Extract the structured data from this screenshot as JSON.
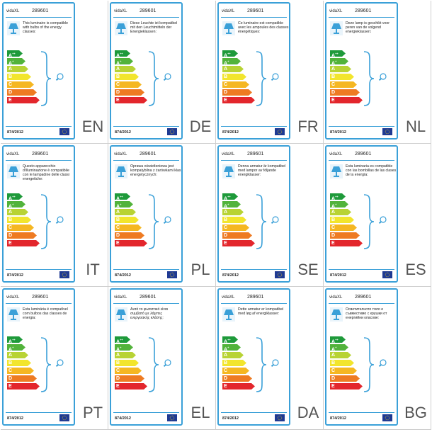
{
  "brand": "vidaXL",
  "model": "289601",
  "regulation": "874/2012",
  "energy_classes": [
    "A++",
    "A+",
    "A",
    "B",
    "C",
    "D",
    "E"
  ],
  "colors": {
    "border": "#3aa0d8",
    "A++": "#1e9a3a",
    "A+": "#52b33b",
    "A": "#b8d334",
    "B": "#f2e52d",
    "C": "#f5b722",
    "D": "#ee7b22",
    "E": "#e3262c",
    "eu_flag": "#1f3a93"
  },
  "icons": [
    "lamp-icon",
    "bulb-icon",
    "eu-flag-icon"
  ],
  "labels": [
    {
      "code": "EN",
      "text": "This luminaire is compatible with bulbs of the energy classes:"
    },
    {
      "code": "DE",
      "text": "Diese Leuchte ist kompatibel mit den Leuchtmitteln der Energieklassen:"
    },
    {
      "code": "FR",
      "text": "Ce luminaire est compatible avec les ampoules des classes énergétiques:"
    },
    {
      "code": "NL",
      "text": "Deze lamp is geschikt voor peren van de volgend energieklassen:"
    },
    {
      "code": "IT",
      "text": "Questo apparecchio d'illuminazione è compatibile con le lampadine delle classi energetiche:"
    },
    {
      "code": "PL",
      "text": "Oprawa oświetleniowa jest kompatybilna z żarówkami klas energetycznych:"
    },
    {
      "code": "SE",
      "text": "Denna armatur är kompatibel med lampor av följande energiklasser:"
    },
    {
      "code": "ES",
      "text": "Esta luminaria es compatible con las bombillas de las clases de la energía:"
    },
    {
      "code": "PT",
      "text": "Esta luminária é compatível com bulbos das classes de energia:"
    },
    {
      "code": "EL",
      "text": "Αυτό το φωτιστικό είναι συμβατό με λάμπες ενεργειακής κλάσης:"
    },
    {
      "code": "DA",
      "text": "Dette armatur er kompatibel med løg af energiklasser:"
    },
    {
      "code": "BG",
      "text": "Осветителното тяло е съвместимо с крушки от енергийни класове:"
    }
  ]
}
